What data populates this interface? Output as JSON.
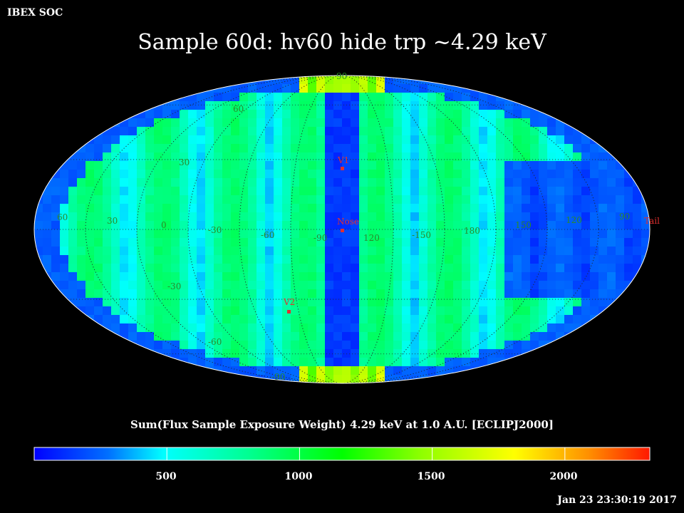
{
  "header": {
    "org": "IBEX SOC",
    "title": "Sample 60d: hv60 hide trp ~4.29 keV"
  },
  "map": {
    "projection": "Mollweide",
    "frame": "ECLIPJ2000",
    "center_longitude_label": "Nose",
    "longitude_labels": [
      "60",
      "30",
      "0",
      "-30",
      "-60",
      "-90",
      "120",
      "-150",
      "180",
      "150",
      "120",
      "90"
    ],
    "latitude_labels": [
      "90",
      "60",
      "30",
      "-30",
      "-60",
      "-90"
    ],
    "markers": [
      {
        "name": "V1",
        "color": "#e03030"
      },
      {
        "name": "Nose",
        "color": "#e03030"
      },
      {
        "name": "V2",
        "color": "#e03030"
      }
    ],
    "edge_label": "Tail",
    "grid": "dotted graticule every 30°"
  },
  "colorbar": {
    "label": "Sum(Flux Sample Exposure Weight)  4.29 keV at 1.0 A.U. [ECLIPJ2000]",
    "min": 0,
    "max": 2320,
    "ticks": [
      "500",
      "1000",
      "1500",
      "2000"
    ],
    "tick_values": [
      500,
      1000,
      1500,
      2000
    ],
    "colors": [
      "#0000ff",
      "#0088ff",
      "#00ffff",
      "#00ff80",
      "#00ff00",
      "#a0ff00",
      "#ffff00",
      "#ff8000",
      "#ff2000"
    ]
  },
  "footer": {
    "timestamp": "Jan 23 23:30:19 2017"
  }
}
